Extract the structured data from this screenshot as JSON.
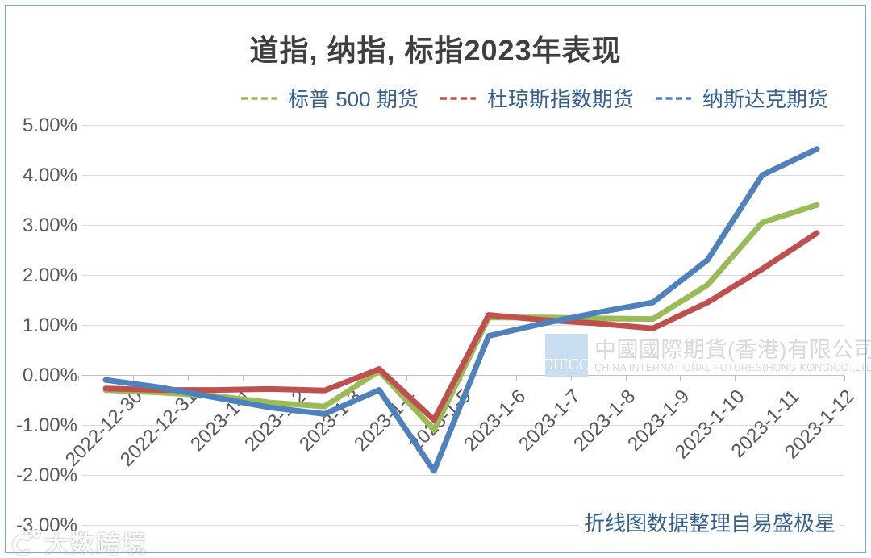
{
  "header": {
    "title": "道指, 纳指, 标指2023年表现"
  },
  "legend": {
    "items": [
      {
        "key": "sp500-futures",
        "label": "标普 500 期货",
        "color": "#9BBB59"
      },
      {
        "key": "dow-futures",
        "label": "杜琼斯指数期货",
        "color": "#C0504D"
      },
      {
        "key": "nasdaq-futures",
        "label": "纳斯达克期货",
        "color": "#4F81BD"
      }
    ]
  },
  "chart_data": {
    "type": "line",
    "title": "道指, 纳指, 标指2023年表现",
    "categories": [
      "2022-12-30",
      "2022-12-31",
      "2023-1-1",
      "2023-1-2",
      "2023-1-3",
      "2023-1-4",
      "2023-1-5",
      "2023-1-6",
      "2023-1-7",
      "2023-1-8",
      "2023-1-9",
      "2023-1-10",
      "2023-1-11",
      "2023-1-12"
    ],
    "series": [
      {
        "key": "sp500-futures",
        "name": "标普 500 期货",
        "color": "#9BBB59",
        "values": [
          -0.3,
          -0.35,
          -0.42,
          -0.55,
          -0.63,
          0.08,
          -1.1,
          1.15,
          1.15,
          1.13,
          1.12,
          1.8,
          3.05,
          3.4
        ]
      },
      {
        "key": "dow-futures",
        "name": "杜琼斯指数期货",
        "color": "#C0504D",
        "values": [
          -0.27,
          -0.3,
          -0.3,
          -0.28,
          -0.31,
          0.12,
          -0.9,
          1.2,
          1.1,
          1.03,
          0.93,
          1.45,
          2.12,
          2.84
        ]
      },
      {
        "key": "nasdaq-futures",
        "name": "纳斯达克期货",
        "color": "#4F81BD",
        "values": [
          -0.1,
          -0.25,
          -0.45,
          -0.65,
          -0.78,
          -0.3,
          -1.92,
          0.78,
          1.03,
          1.25,
          1.45,
          2.3,
          4.0,
          4.52
        ]
      }
    ],
    "ylabel": "",
    "xlabel": "",
    "ylim": [
      -3,
      5
    ],
    "ytick_labels": [
      "5.00%",
      "4.00%",
      "3.00%",
      "2.00%",
      "1.00%",
      "0.00%",
      "-1.00%",
      "-2.00%",
      "-3.00%"
    ],
    "grid": true,
    "legend_position": "top"
  },
  "watermarks": {
    "cifco_badge": "CIFCO",
    "cifco_cn": "中國國際期貨(香港)有限公司",
    "cifco_en": "CHINA INTERNATIONAL FUTURES(HONG KONG)CO.,LTD.",
    "corner_text": "大数跨境"
  },
  "footnote": {
    "text": "折线图数据整理自易盛极星"
  },
  "colors": {
    "frame_border": "#82a2ca",
    "gridline": "#d9d9d9",
    "axis_line": "#bfbfbf",
    "axis_text": "#595959",
    "title_text": "#3f3f3f",
    "legend_text": "#376092",
    "footnote_text": "#376092",
    "watermark_box": "#cadef2",
    "watermark_text": "#d9d9d9"
  }
}
